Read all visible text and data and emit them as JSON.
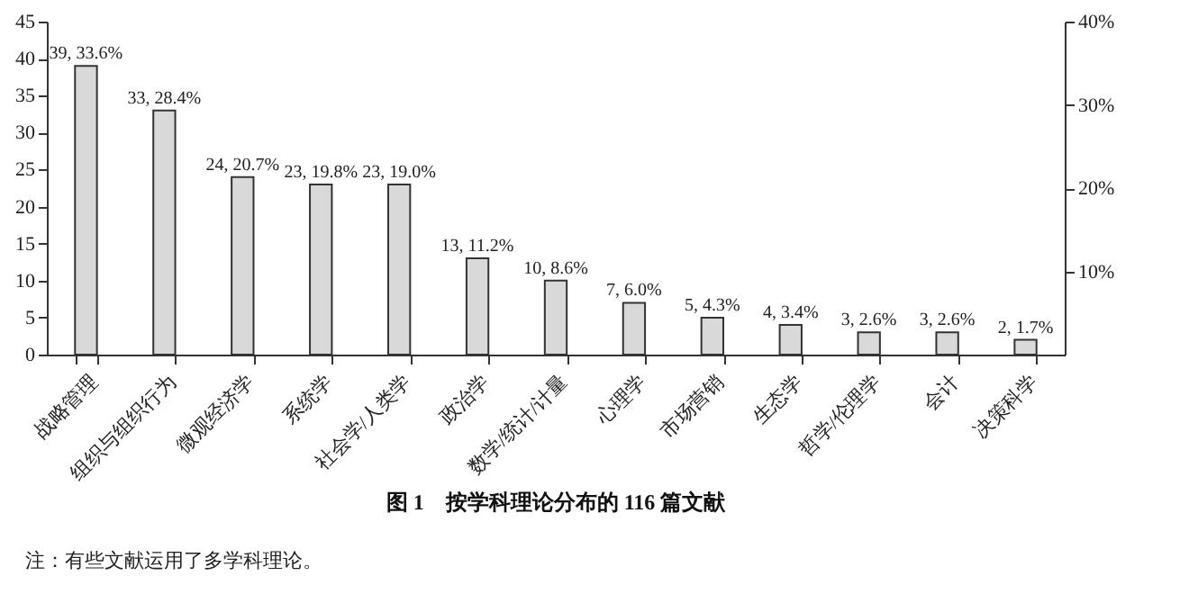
{
  "chart_data": {
    "type": "bar",
    "title": "图 1　按学科理论分布的 116 篇文献",
    "annotations": [
      "注：有些文献运用了多学科理论。"
    ],
    "categories": [
      "战略管理",
      "组织与组织行为",
      "微观经济学",
      "系统学",
      "社会学/人类学",
      "政治学",
      "数学/统计/计量",
      "心理学",
      "市场营销",
      "生态学",
      "哲学/伦理学",
      "会计",
      "决策科学"
    ],
    "values": [
      39,
      33,
      24,
      23,
      23,
      13,
      10,
      7,
      5,
      4,
      3,
      3,
      2
    ],
    "value_labels": [
      "39, 33.6%",
      "33, 28.4%",
      "24, 20.7%",
      "23, 19.8%",
      "23, 19.0%",
      "13, 11.2%",
      "10, 8.6%",
      "7, 6.0%",
      "5, 4.3%",
      "4, 3.4%",
      "3, 2.6%",
      "3, 2.6%",
      "2, 1.7%"
    ],
    "color": "#d9d9d9",
    "ylim": [
      0,
      45
    ],
    "yticks": [
      0,
      5,
      10,
      15,
      20,
      25,
      30,
      35,
      40,
      45
    ],
    "y2lim": [
      0,
      40
    ],
    "y2ticks": [
      {
        "value": 10,
        "label": "10%"
      },
      {
        "value": 20,
        "label": "20%"
      },
      {
        "value": 30,
        "label": "30%"
      },
      {
        "value": 40,
        "label": "40%"
      }
    ],
    "grid": false
  }
}
